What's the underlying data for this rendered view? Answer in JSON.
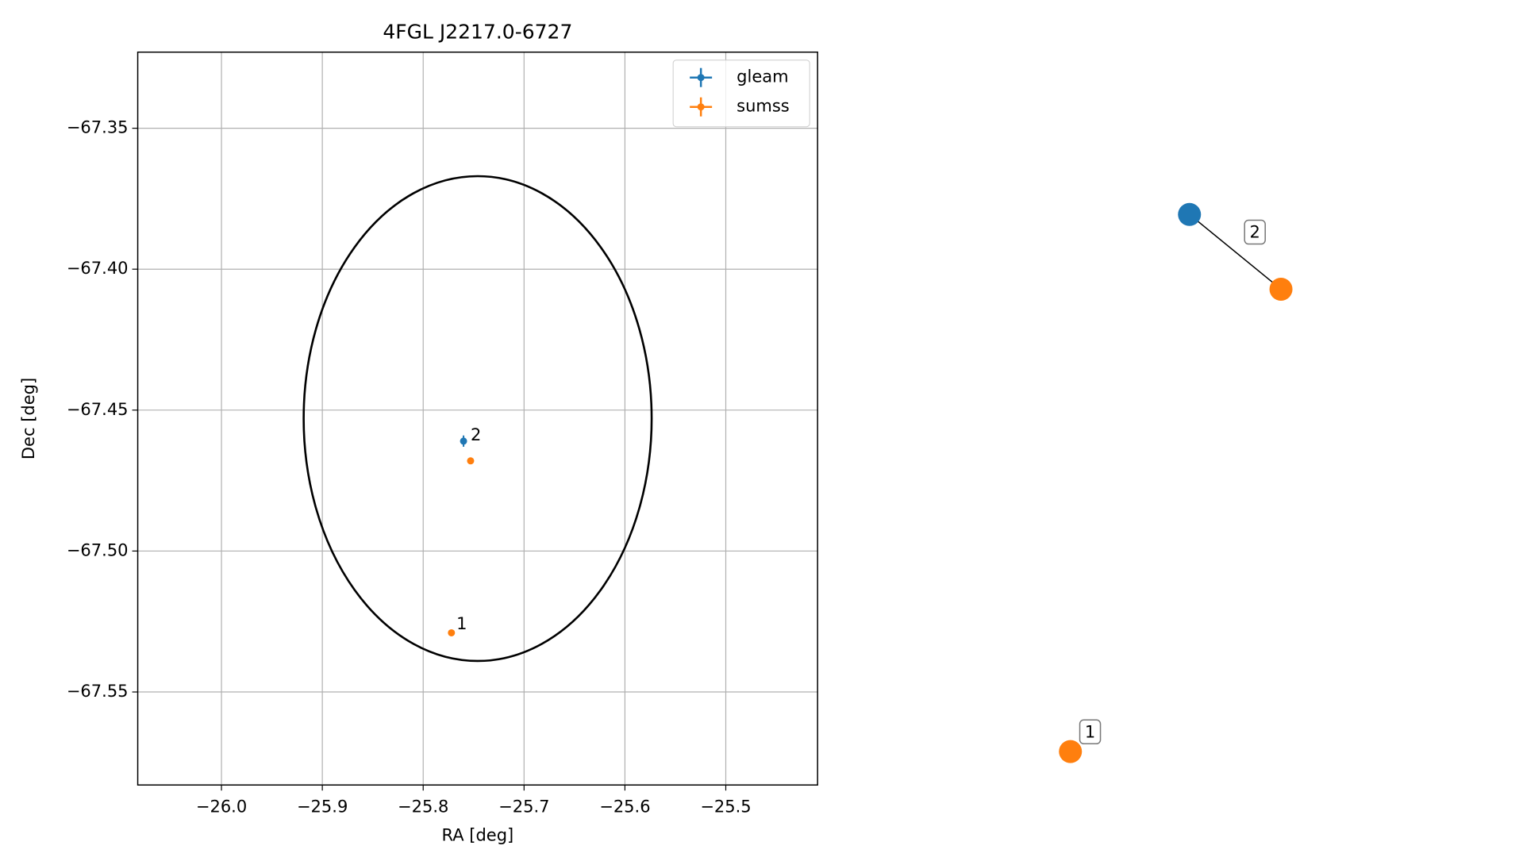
{
  "chart_data": [
    {
      "type": "scatter",
      "title": "4FGL J2217.0-6727",
      "xlabel": "RA [deg]",
      "ylabel": "Dec [deg]",
      "xlim": [
        -26.083,
        -25.409
      ],
      "ylim": [
        -67.583,
        -67.323
      ],
      "xticks": [
        {
          "value": -26.0,
          "label": "−26.0"
        },
        {
          "value": -25.9,
          "label": "−25.9"
        },
        {
          "value": -25.8,
          "label": "−25.8"
        },
        {
          "value": -25.7,
          "label": "−25.7"
        },
        {
          "value": -25.6,
          "label": "−25.6"
        },
        {
          "value": -25.5,
          "label": "−25.5"
        }
      ],
      "yticks": [
        {
          "value": -67.35,
          "label": "−67.35"
        },
        {
          "value": -67.4,
          "label": "−67.40"
        },
        {
          "value": -67.45,
          "label": "−67.45"
        },
        {
          "value": -67.5,
          "label": "−67.50"
        },
        {
          "value": -67.55,
          "label": "−67.55"
        }
      ],
      "grid": true,
      "legend": "upper right",
      "series": [
        {
          "name": "gleam",
          "color": "#1f77b4",
          "x": [
            -25.76
          ],
          "y": [
            -67.461
          ],
          "xerr": [
            0.003
          ],
          "yerr": [
            0.002
          ]
        },
        {
          "name": "sumss",
          "color": "#ff7f0e",
          "x": [
            -25.753,
            -25.772
          ],
          "y": [
            -67.468,
            -67.529
          ],
          "xerr": [
            0.001,
            0.001
          ],
          "yerr": [
            0.001,
            0.001
          ]
        }
      ],
      "annotations": [
        {
          "text": "2",
          "x": -25.753,
          "y": -67.459
        },
        {
          "text": "1",
          "x": -25.767,
          "y": -67.526
        }
      ],
      "ellipse": {
        "center": [
          -25.746,
          -67.453
        ],
        "width": 0.345,
        "height": 0.172,
        "color": "#000000"
      }
    },
    {
      "type": "network",
      "nodes": [
        {
          "color": "#1f77b4"
        },
        {
          "color": "#ff7f0e"
        },
        {
          "color": "#ff7f0e"
        }
      ],
      "edges": [
        {
          "source": 0,
          "target": 1,
          "label": "2"
        },
        {
          "source": 2,
          "target": 2,
          "label": "1"
        }
      ]
    }
  ]
}
